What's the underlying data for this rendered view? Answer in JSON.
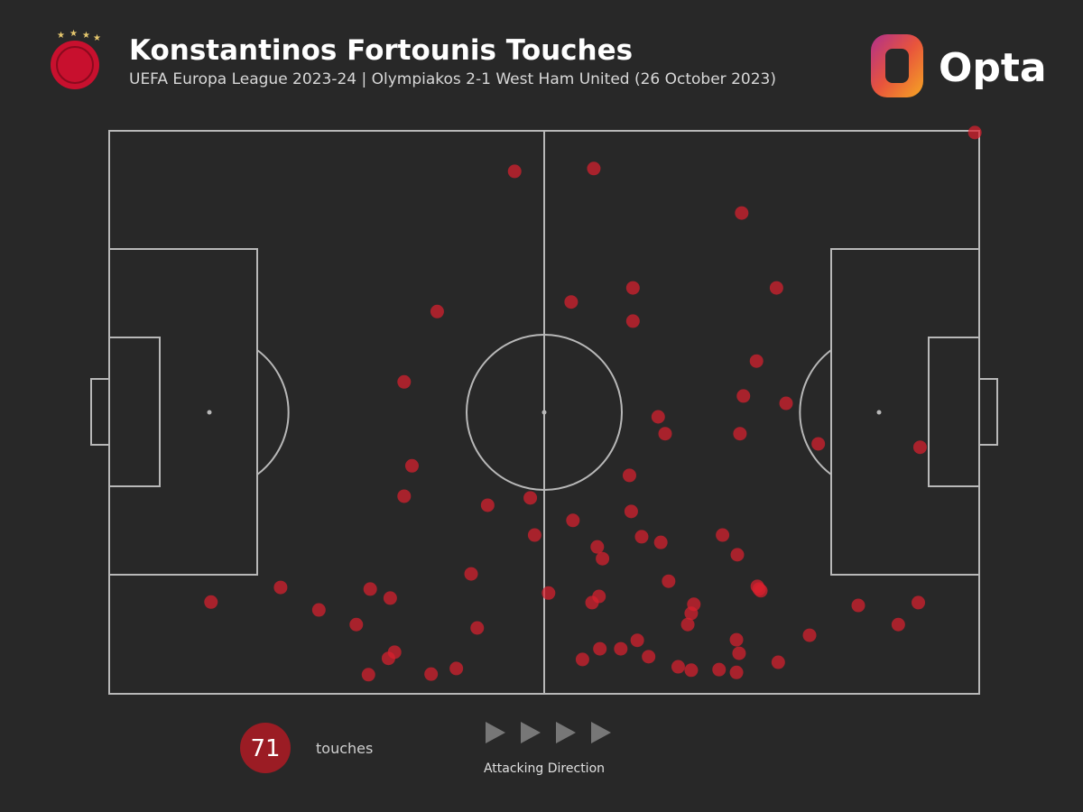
{
  "chart_data": {
    "type": "scatter",
    "title": "Konstantinos Fortounis Touches",
    "subtitle": "UEFA Europa League 2023-24 | Olympiakos 2-1 West Ham United (26 October 2023)",
    "brand": "Opta",
    "touch_count": 71,
    "touch_label": "touches",
    "direction_label": "Attacking Direction",
    "color": "#d9202e",
    "xlim": [
      0,
      100
    ],
    "ylim": [
      0,
      100
    ],
    "x": [
      99.5,
      46.6,
      55.7,
      72.7,
      60.2,
      76.7,
      53.1,
      37.7,
      60.2,
      74.4,
      33.9,
      72.9,
      77.8,
      63.1,
      63.9,
      72.5,
      81.5,
      93.2,
      34.8,
      59.8,
      33.9,
      48.4,
      43.5,
      60.0,
      53.3,
      48.9,
      61.2,
      63.4,
      70.5,
      56.1,
      56.7,
      72.2,
      41.6,
      64.3,
      74.5,
      74.9,
      50.5,
      56.3,
      55.5,
      11.7,
      19.7,
      30.0,
      32.3,
      24.1,
      28.4,
      42.3,
      67.2,
      66.9,
      66.5,
      86.1,
      93.0,
      90.7,
      80.5,
      32.8,
      32.1,
      56.4,
      58.8,
      60.7,
      62.0,
      54.4,
      72.1,
      72.4,
      76.9,
      65.4,
      66.9,
      70.1,
      72.1,
      29.8,
      37.0,
      39.9,
      74.7
    ],
    "y": [
      99.7,
      92.8,
      93.3,
      85.4,
      72.1,
      72.1,
      69.6,
      67.9,
      66.2,
      59.1,
      55.4,
      52.9,
      51.6,
      49.2,
      46.2,
      46.2,
      44.4,
      43.8,
      40.5,
      38.8,
      35.1,
      34.8,
      33.5,
      32.4,
      30.8,
      28.2,
      27.9,
      26.9,
      28.2,
      26.1,
      24.0,
      24.7,
      21.3,
      20.0,
      19.1,
      18.3,
      17.9,
      17.3,
      16.2,
      16.3,
      18.9,
      18.6,
      17.0,
      14.9,
      12.3,
      11.7,
      15.9,
      14.3,
      12.3,
      15.7,
      16.2,
      12.3,
      10.4,
      7.4,
      6.3,
      8.0,
      8.0,
      9.5,
      6.6,
      6.1,
      9.6,
      7.2,
      5.6,
      4.8,
      4.2,
      4.3,
      3.8,
      3.4,
      3.5,
      4.5,
      18.6
    ]
  }
}
